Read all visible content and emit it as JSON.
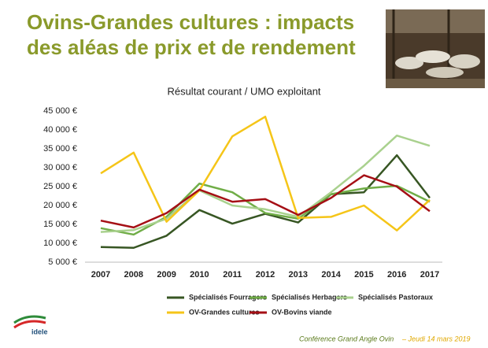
{
  "title_lines": [
    "Ovins-Grandes cultures : impacts",
    "des aléas de prix et de rendement"
  ],
  "chart_data": {
    "type": "line",
    "title": "Résultat courant / UMO exploitant",
    "categories": [
      "2007",
      "2008",
      "2009",
      "2010",
      "2011",
      "2012",
      "2013",
      "2014",
      "2015",
      "2016",
      "2017"
    ],
    "series": [
      {
        "name": "Spécialisés Fourragers",
        "color": "#375623",
        "values": [
          9000,
          8800,
          12000,
          18800,
          15200,
          17800,
          15500,
          23000,
          23500,
          33300,
          22000
        ]
      },
      {
        "name": "Spécialisés Herbagers",
        "color": "#70ad47",
        "values": [
          14000,
          12300,
          17000,
          25800,
          23500,
          18000,
          16500,
          23000,
          24500,
          25200,
          21000
        ]
      },
      {
        "name": "Spécialisés Pastoraux",
        "color": "#a9d18e",
        "values": [
          13000,
          13500,
          16500,
          24000,
          20000,
          19000,
          17000,
          23500,
          30500,
          38500,
          35800
        ]
      },
      {
        "name": "OV-Grandes cultures",
        "color": "#f5c518",
        "values": [
          28500,
          34000,
          15700,
          24000,
          38300,
          43500,
          16700,
          17000,
          20000,
          13400,
          21500
        ]
      },
      {
        "name": "OV-Bovins viande",
        "color": "#a50f15",
        "values": [
          16000,
          14200,
          18000,
          24200,
          21000,
          21700,
          17500,
          22000,
          28000,
          25000,
          18500
        ]
      }
    ],
    "ylim": [
      5000,
      45000
    ],
    "yticks": [
      {
        "value": 5000,
        "label": "5 000 €"
      },
      {
        "value": 10000,
        "label": "10 000 €"
      },
      {
        "value": 15000,
        "label": "15 000 €"
      },
      {
        "value": 20000,
        "label": "20 000 €"
      },
      {
        "value": 25000,
        "label": "25 000 €"
      },
      {
        "value": 30000,
        "label": "30 000 €"
      },
      {
        "value": 35000,
        "label": "35 000 €"
      },
      {
        "value": 40000,
        "label": "40 000 €"
      },
      {
        "value": 45000,
        "label": "45 000 €"
      }
    ],
    "grid": false,
    "legend": "bottom"
  },
  "logo_text": "idele",
  "footer": {
    "event": "Conférence Grand Angle Ovin",
    "date": "– Jeudi 14 mars 2019"
  }
}
